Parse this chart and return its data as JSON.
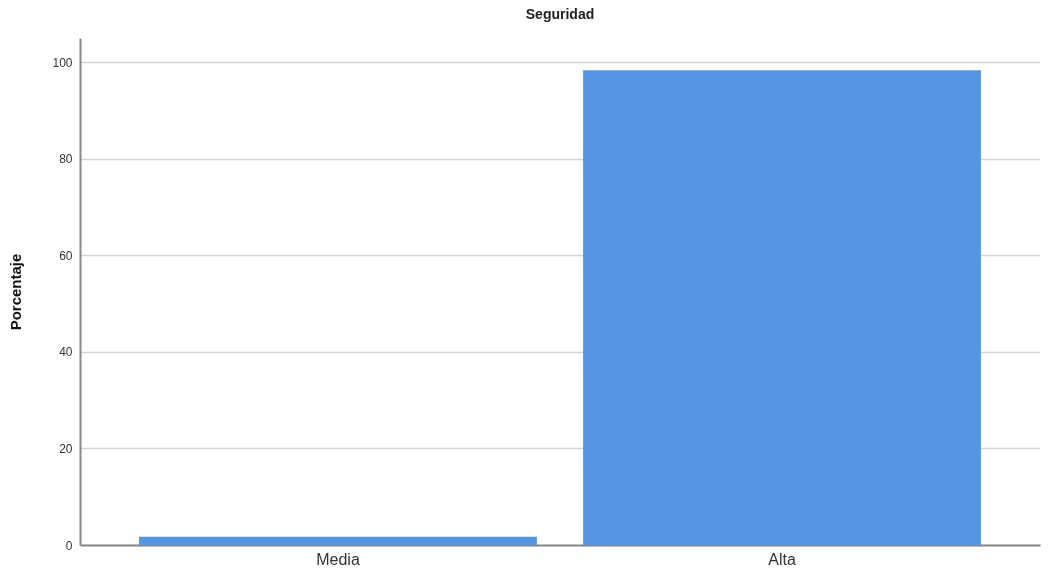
{
  "chart_data": {
    "type": "bar",
    "title": "Seguridad",
    "ylabel": "Porcentaje",
    "categories": [
      "Media",
      "Alta"
    ],
    "values": [
      1.7,
      98.3
    ],
    "color": "#5596e3",
    "ylim": [
      0,
      105
    ],
    "yticks": [
      0,
      20,
      40,
      60,
      80,
      100
    ],
    "grid": "y"
  }
}
